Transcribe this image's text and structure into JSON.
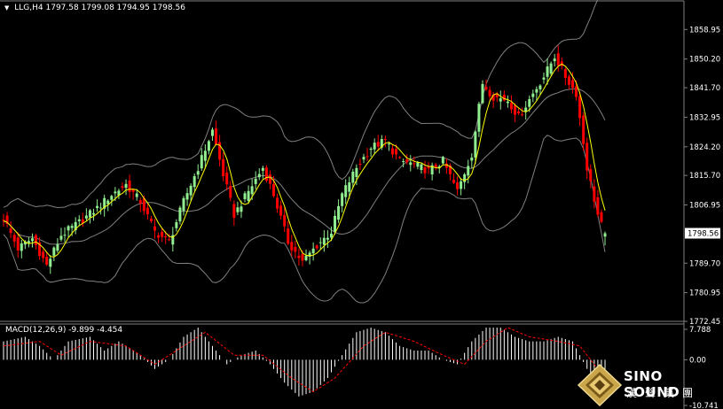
{
  "header": {
    "symbol": "LLG,H4",
    "ohlc": "1797.58 1799.08 1794.95 1798.56"
  },
  "macd_header": {
    "label": "MACD(12,26,9)",
    "values": "-9.899 -4.454"
  },
  "price_axis": {
    "ticks": [
      "1858.95",
      "1850.20",
      "1841.70",
      "1832.95",
      "1824.20",
      "1815.70",
      "1806.95",
      "1789.70",
      "1780.95",
      "1772.45"
    ],
    "current_price": "1798.56"
  },
  "macd_axis": {
    "ticks": [
      "7.788",
      "0.00",
      "-10.741"
    ]
  },
  "logo": {
    "brand": "SINO SOUND",
    "chinese": "漢聲集團"
  },
  "colors": {
    "background": "#000000",
    "bull_candle": "#90EE90",
    "bear_candle": "#FF0000",
    "moving_average": "#FFFF00",
    "bollinger": "#808080",
    "macd_histogram": "#FFFFFF",
    "macd_signal": "#FF0000",
    "axis_text": "#FFFFFF"
  },
  "chart_data": [
    {
      "type": "candlestick",
      "ylim": [
        1772.45,
        1867.7
      ],
      "anchors": [
        [
          0,
          1803
        ],
        [
          4,
          1794
        ],
        [
          8,
          1797
        ],
        [
          12,
          1789
        ],
        [
          16,
          1798
        ],
        [
          20,
          1801
        ],
        [
          26,
          1806
        ],
        [
          30,
          1810
        ],
        [
          34,
          1813
        ],
        [
          38,
          1808
        ],
        [
          42,
          1799
        ],
        [
          46,
          1796
        ],
        [
          50,
          1808
        ],
        [
          54,
          1818
        ],
        [
          58,
          1829
        ],
        [
          61,
          1816
        ],
        [
          64,
          1804
        ],
        [
          68,
          1811
        ],
        [
          72,
          1818
        ],
        [
          75,
          1810
        ],
        [
          79,
          1796
        ],
        [
          83,
          1790
        ],
        [
          87,
          1795
        ],
        [
          91,
          1799
        ],
        [
          94,
          1810
        ],
        [
          98,
          1818
        ],
        [
          102,
          1824
        ],
        [
          106,
          1826
        ],
        [
          110,
          1820
        ],
        [
          114,
          1819
        ],
        [
          118,
          1817
        ],
        [
          122,
          1820
        ],
        [
          126,
          1811
        ],
        [
          130,
          1822
        ],
        [
          133,
          1843
        ],
        [
          136,
          1839
        ],
        [
          140,
          1838
        ],
        [
          143,
          1833
        ],
        [
          147,
          1840
        ],
        [
          150,
          1845
        ],
        [
          153,
          1851
        ],
        [
          156,
          1845
        ],
        [
          159,
          1840
        ],
        [
          162,
          1818
        ],
        [
          165,
          1804
        ],
        [
          167,
          1798
        ]
      ],
      "indicators": [
        "moving_average",
        "bollinger_bands"
      ]
    },
    {
      "type": "macd",
      "params": "12,26,9",
      "ylim": [
        -10.741,
        7.788
      ],
      "anchors": [
        [
          0,
          4
        ],
        [
          6,
          5
        ],
        [
          10,
          3
        ],
        [
          14,
          0
        ],
        [
          18,
          4
        ],
        [
          24,
          5
        ],
        [
          28,
          2
        ],
        [
          32,
          4
        ],
        [
          38,
          1
        ],
        [
          42,
          -2
        ],
        [
          46,
          0
        ],
        [
          50,
          5
        ],
        [
          54,
          7
        ],
        [
          58,
          3
        ],
        [
          62,
          -1
        ],
        [
          66,
          1
        ],
        [
          70,
          2
        ],
        [
          74,
          -1
        ],
        [
          78,
          -5
        ],
        [
          82,
          -8
        ],
        [
          86,
          -7
        ],
        [
          90,
          -4
        ],
        [
          94,
          1
        ],
        [
          98,
          6
        ],
        [
          102,
          7
        ],
        [
          106,
          6
        ],
        [
          110,
          3
        ],
        [
          114,
          2
        ],
        [
          118,
          2
        ],
        [
          122,
          0
        ],
        [
          126,
          -1
        ],
        [
          130,
          4
        ],
        [
          134,
          7
        ],
        [
          138,
          7
        ],
        [
          142,
          5
        ],
        [
          146,
          4
        ],
        [
          150,
          4
        ],
        [
          154,
          5
        ],
        [
          158,
          4
        ],
        [
          162,
          -2
        ],
        [
          166,
          -7
        ],
        [
          167,
          -7
        ]
      ],
      "signal_anchors": [
        [
          0,
          3
        ],
        [
          10,
          4
        ],
        [
          16,
          1
        ],
        [
          24,
          4
        ],
        [
          34,
          3
        ],
        [
          42,
          -1
        ],
        [
          50,
          3
        ],
        [
          56,
          6
        ],
        [
          64,
          1
        ],
        [
          72,
          1
        ],
        [
          80,
          -4
        ],
        [
          86,
          -7
        ],
        [
          92,
          -4
        ],
        [
          100,
          3
        ],
        [
          106,
          6
        ],
        [
          114,
          4
        ],
        [
          122,
          1
        ],
        [
          128,
          -1
        ],
        [
          134,
          4
        ],
        [
          140,
          7
        ],
        [
          146,
          5
        ],
        [
          154,
          4
        ],
        [
          160,
          3
        ],
        [
          165,
          -2
        ],
        [
          167,
          -4
        ]
      ]
    }
  ]
}
